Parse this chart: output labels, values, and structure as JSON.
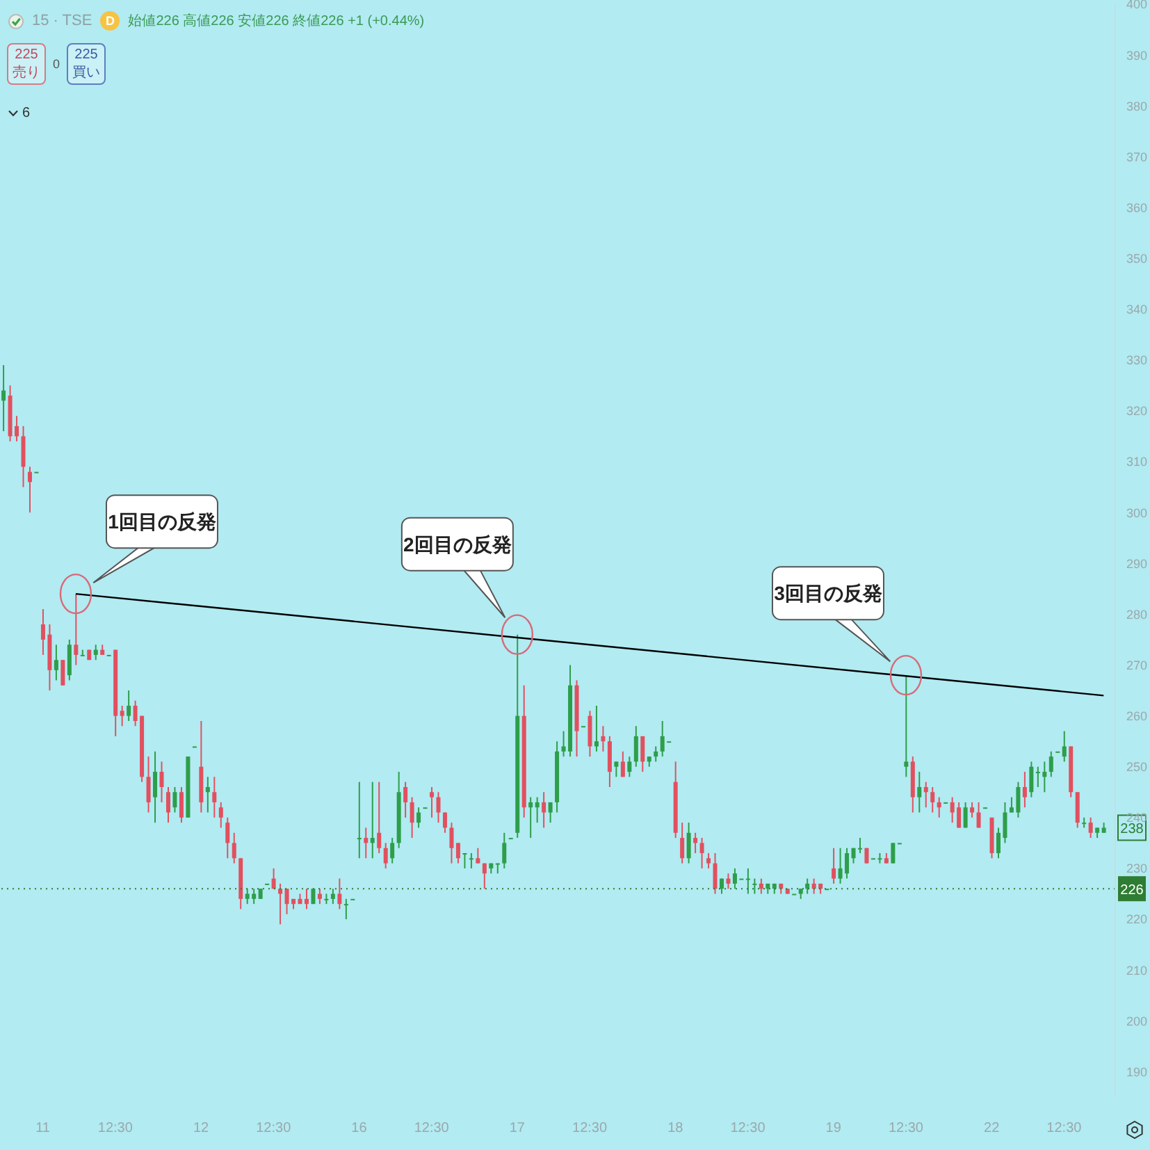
{
  "chart_data": {
    "type": "candlestick",
    "title": "15 · TSE",
    "subtitle": "始値226 高値226 安値226 終値226 +1 (+0.44%)",
    "categories": [
      null,
      null,
      null,
      null,
      null,
      null,
      "11",
      null,
      null,
      null,
      null,
      null,
      null,
      null,
      null,
      null,
      null,
      "12:30",
      null,
      null,
      null,
      null,
      null,
      null,
      null,
      null,
      null,
      null,
      null,
      null,
      "12",
      null,
      null,
      null,
      null,
      null,
      null,
      null,
      null,
      null,
      null,
      "12:30",
      null,
      null,
      null,
      null,
      null,
      null,
      null,
      null,
      null,
      null,
      null,
      null,
      "16",
      null,
      null,
      null,
      null,
      null,
      null,
      null,
      null,
      null,
      null,
      "12:30",
      null,
      null,
      null,
      null,
      null,
      null,
      null,
      null,
      null,
      null,
      null,
      null,
      "17",
      null,
      null,
      null,
      null,
      null,
      null,
      null,
      null,
      null,
      null,
      "12:30",
      null,
      null,
      null,
      null,
      null,
      null,
      null,
      null,
      null,
      null,
      null,
      null,
      "18",
      null,
      null,
      null,
      null,
      null,
      null,
      null,
      null,
      null,
      null,
      "12:30",
      null,
      null,
      null,
      null,
      null,
      null,
      null,
      null,
      null,
      null,
      null,
      null,
      "19",
      null,
      null,
      null,
      null,
      null,
      null,
      null,
      null,
      null,
      null,
      "12:30",
      null,
      null,
      null,
      null,
      null,
      null,
      null,
      null,
      null,
      null,
      null,
      null,
      "22",
      null,
      null,
      null,
      null,
      null,
      null,
      null,
      null,
      null,
      null,
      "12:30",
      null,
      null,
      null,
      null,
      null,
      null
    ],
    "ohlc": [
      [
        322,
        329,
        316,
        324
      ],
      [
        323,
        325,
        314,
        315
      ],
      [
        317,
        319,
        314,
        315
      ],
      [
        315,
        317,
        305,
        309
      ],
      [
        308,
        309,
        300,
        306
      ],
      [
        308,
        308,
        308,
        308
      ],
      [
        278,
        281,
        272,
        275
      ],
      [
        276,
        278,
        265,
        269
      ],
      [
        269,
        274,
        267,
        271
      ],
      [
        271,
        271,
        266,
        266
      ],
      [
        268,
        275,
        267,
        274
      ],
      [
        274,
        284,
        270,
        272
      ],
      [
        272,
        273,
        272,
        272
      ],
      [
        273,
        273,
        271,
        271
      ],
      [
        272,
        274,
        271,
        273
      ],
      [
        273,
        274,
        272,
        272
      ],
      [
        272,
        272,
        272,
        272
      ],
      [
        273,
        273,
        256,
        260
      ],
      [
        261,
        262,
        258,
        260
      ],
      [
        260,
        265,
        259,
        262
      ],
      [
        262,
        263,
        258,
        259
      ],
      [
        260,
        260,
        247,
        248
      ],
      [
        248,
        252,
        241,
        243
      ],
      [
        244,
        253,
        239,
        249
      ],
      [
        249,
        251,
        243,
        246
      ],
      [
        245,
        246,
        239,
        241
      ],
      [
        242,
        246,
        241,
        245
      ],
      [
        245,
        246,
        239,
        240
      ],
      [
        240,
        252,
        240,
        252
      ],
      [
        254,
        254,
        254,
        254
      ],
      [
        250,
        259,
        241,
        243
      ],
      [
        245,
        248,
        241,
        246
      ],
      [
        245,
        248,
        240,
        243
      ],
      [
        242,
        243,
        238,
        240
      ],
      [
        239,
        240,
        232,
        235
      ],
      [
        235,
        237,
        231,
        232
      ],
      [
        232,
        232,
        222,
        224
      ],
      [
        224,
        226,
        223,
        225
      ],
      [
        224,
        226,
        223,
        225
      ],
      [
        224,
        226,
        224,
        226
      ],
      [
        227,
        227,
        227,
        227
      ],
      [
        228,
        230,
        226,
        226
      ],
      [
        226,
        227,
        219,
        225
      ],
      [
        226,
        226,
        221,
        223
      ],
      [
        224,
        224,
        222,
        223
      ],
      [
        224,
        225,
        223,
        223
      ],
      [
        224,
        226,
        222,
        223
      ],
      [
        223,
        226,
        223,
        226
      ],
      [
        225,
        226,
        223,
        224
      ],
      [
        224,
        225,
        223,
        224
      ],
      [
        224,
        226,
        223,
        225
      ],
      [
        225,
        228,
        222,
        223
      ],
      [
        223,
        224,
        220,
        223
      ],
      [
        224,
        224,
        224,
        224
      ],
      [
        236,
        247,
        232,
        236
      ],
      [
        236,
        238,
        232,
        235
      ],
      [
        235,
        247,
        232,
        236
      ],
      [
        237,
        247,
        233,
        234
      ],
      [
        234,
        235,
        230,
        231
      ],
      [
        232,
        236,
        231,
        235
      ],
      [
        235,
        249,
        234,
        245
      ],
      [
        246,
        247,
        240,
        243
      ],
      [
        243,
        244,
        236,
        239
      ],
      [
        239,
        242,
        238,
        241
      ],
      [
        242,
        242,
        242,
        242
      ],
      [
        245,
        246,
        240,
        244
      ],
      [
        244,
        245,
        239,
        241
      ],
      [
        241,
        241,
        237,
        238
      ],
      [
        238,
        239,
        231,
        234
      ],
      [
        235,
        235,
        231,
        232
      ],
      [
        233,
        233,
        230,
        233
      ],
      [
        232,
        233,
        230,
        232
      ],
      [
        232,
        234,
        231,
        231
      ],
      [
        231,
        231,
        226,
        229
      ],
      [
        230,
        231,
        229,
        231
      ],
      [
        231,
        231,
        229,
        231
      ],
      [
        231,
        237,
        230,
        235
      ],
      [
        236,
        236,
        236,
        236
      ],
      [
        237,
        276,
        236,
        260
      ],
      [
        260,
        266,
        240,
        242
      ],
      [
        242,
        244,
        236,
        243
      ],
      [
        242,
        244,
        239,
        243
      ],
      [
        243,
        245,
        238,
        241
      ],
      [
        241,
        243,
        239,
        243
      ],
      [
        243,
        255,
        241,
        253
      ],
      [
        253,
        257,
        252,
        254
      ],
      [
        253,
        270,
        252,
        266
      ],
      [
        266,
        267,
        252,
        257
      ],
      [
        258,
        258,
        258,
        258
      ],
      [
        260,
        261,
        252,
        254
      ],
      [
        254,
        262,
        253,
        255
      ],
      [
        256,
        258,
        253,
        255
      ],
      [
        255,
        256,
        246,
        249
      ],
      [
        250,
        251,
        248,
        251
      ],
      [
        251,
        253,
        248,
        248
      ],
      [
        249,
        252,
        248,
        251
      ],
      [
        251,
        258,
        250,
        256
      ],
      [
        256,
        256,
        249,
        251
      ],
      [
        251,
        252,
        250,
        252
      ],
      [
        252,
        254,
        251,
        253
      ],
      [
        253,
        259,
        252,
        256
      ],
      [
        255,
        255,
        255,
        255
      ],
      [
        247,
        251,
        236,
        237
      ],
      [
        236,
        239,
        231,
        232
      ],
      [
        232,
        239,
        231,
        237
      ],
      [
        236,
        237,
        233,
        235
      ],
      [
        235,
        236,
        230,
        233
      ],
      [
        232,
        233,
        230,
        231
      ],
      [
        231,
        233,
        225,
        226
      ],
      [
        226,
        228,
        225,
        228
      ],
      [
        228,
        229,
        226,
        227
      ],
      [
        227,
        230,
        226,
        229
      ],
      [
        228,
        228,
        228,
        228
      ],
      [
        228,
        230,
        225,
        228
      ],
      [
        227,
        228,
        225,
        227
      ],
      [
        227,
        228,
        225,
        226
      ],
      [
        226,
        227,
        225,
        227
      ],
      [
        226,
        227,
        225,
        227
      ],
      [
        227,
        227,
        225,
        226
      ],
      [
        226,
        226,
        225,
        225
      ],
      [
        225,
        225,
        225,
        225
      ],
      [
        225,
        226,
        224,
        226
      ],
      [
        226,
        228,
        225,
        227
      ],
      [
        227,
        228,
        225,
        226
      ],
      [
        227,
        227,
        225,
        226
      ],
      [
        226,
        226,
        226,
        226
      ],
      [
        230,
        234,
        227,
        228
      ],
      [
        228,
        234,
        227,
        230
      ],
      [
        229,
        234,
        228,
        233
      ],
      [
        232,
        234,
        231,
        234
      ],
      [
        234,
        236,
        233,
        234
      ],
      [
        234,
        234,
        231,
        231
      ],
      [
        232,
        232,
        232,
        232
      ],
      [
        232,
        233,
        231,
        232
      ],
      [
        232,
        233,
        231,
        231
      ],
      [
        231,
        235,
        231,
        235
      ],
      [
        235,
        235,
        235,
        235
      ],
      [
        250,
        268,
        248,
        251
      ],
      [
        251,
        252,
        241,
        244
      ],
      [
        244,
        249,
        241,
        246
      ],
      [
        246,
        247,
        242,
        245
      ],
      [
        245,
        246,
        241,
        243
      ],
      [
        243,
        244,
        240,
        242
      ],
      [
        243,
        243,
        243,
        243
      ],
      [
        243,
        244,
        239,
        241
      ],
      [
        242,
        243,
        238,
        238
      ],
      [
        238,
        243,
        238,
        242
      ],
      [
        242,
        243,
        240,
        241
      ],
      [
        241,
        243,
        238,
        238
      ],
      [
        242,
        242,
        242,
        242
      ],
      [
        240,
        240,
        232,
        233
      ],
      [
        233,
        238,
        232,
        237
      ],
      [
        236,
        243,
        235,
        241
      ],
      [
        241,
        244,
        241,
        242
      ],
      [
        241,
        247,
        240,
        246
      ],
      [
        246,
        249,
        242,
        244
      ],
      [
        245,
        251,
        244,
        250
      ],
      [
        249,
        250,
        246,
        249
      ],
      [
        248,
        251,
        245,
        249
      ],
      [
        249,
        253,
        248,
        252
      ],
      [
        253,
        253,
        253,
        253
      ],
      [
        252,
        257,
        251,
        254
      ],
      [
        254,
        254,
        244,
        245
      ],
      [
        245,
        245,
        238,
        239
      ],
      [
        239,
        240,
        238,
        239
      ],
      [
        239,
        240,
        236,
        237
      ],
      [
        237,
        238,
        236,
        238
      ],
      [
        237,
        239,
        237,
        238
      ]
    ],
    "colors": [
      "#2e9e4a",
      "#e2505f",
      "#e2505f",
      "#e2505f",
      "#e2505f",
      "#2e9e4a",
      "#e2505f",
      "#e2505f",
      "#2e9e4a",
      "#e2505f",
      "#2e9e4a",
      "#e2505f",
      "#2e9e4a",
      "#e2505f",
      "#2e9e4a",
      "#e2505f",
      "#2e9e4a",
      "#e2505f",
      "#e2505f",
      "#2e9e4a",
      "#e2505f",
      "#e2505f",
      "#e2505f",
      "#2e9e4a",
      "#e2505f",
      "#e2505f",
      "#2e9e4a",
      "#e2505f",
      "#2e9e4a",
      "#2e9e4a",
      "#e2505f",
      "#2e9e4a",
      "#e2505f",
      "#e2505f",
      "#e2505f",
      "#e2505f",
      "#e2505f",
      "#2e9e4a",
      "#2e9e4a",
      "#2e9e4a",
      "#2e9e4a",
      "#e2505f",
      "#e2505f",
      "#e2505f",
      "#e2505f",
      "#e2505f",
      "#e2505f",
      "#2e9e4a",
      "#e2505f",
      "#2e9e4a",
      "#2e9e4a",
      "#e2505f",
      "#2e9e4a",
      "#2e9e4a",
      "#2e9e4a",
      "#e2505f",
      "#2e9e4a",
      "#e2505f",
      "#e2505f",
      "#2e9e4a",
      "#2e9e4a",
      "#e2505f",
      "#e2505f",
      "#2e9e4a",
      "#2e9e4a",
      "#e2505f",
      "#e2505f",
      "#e2505f",
      "#e2505f",
      "#e2505f",
      "#2e9e4a",
      "#2e9e4a",
      "#e2505f",
      "#e2505f",
      "#2e9e4a",
      "#2e9e4a",
      "#2e9e4a",
      "#2e9e4a",
      "#2e9e4a",
      "#e2505f",
      "#2e9e4a",
      "#2e9e4a",
      "#e2505f",
      "#2e9e4a",
      "#2e9e4a",
      "#2e9e4a",
      "#2e9e4a",
      "#e2505f",
      "#2e9e4a",
      "#e2505f",
      "#2e9e4a",
      "#e2505f",
      "#e2505f",
      "#2e9e4a",
      "#e2505f",
      "#2e9e4a",
      "#2e9e4a",
      "#e2505f",
      "#2e9e4a",
      "#2e9e4a",
      "#2e9e4a",
      "#2e9e4a",
      "#e2505f",
      "#e2505f",
      "#2e9e4a",
      "#e2505f",
      "#e2505f",
      "#e2505f",
      "#e2505f",
      "#2e9e4a",
      "#e2505f",
      "#2e9e4a",
      "#2e9e4a",
      "#2e9e4a",
      "#2e9e4a",
      "#e2505f",
      "#2e9e4a",
      "#2e9e4a",
      "#e2505f",
      "#e2505f",
      "#2e9e4a",
      "#2e9e4a",
      "#2e9e4a",
      "#e2505f",
      "#e2505f",
      "#2e9e4a",
      "#e2505f",
      "#2e9e4a",
      "#2e9e4a",
      "#2e9e4a",
      "#2e9e4a",
      "#e2505f",
      "#2e9e4a",
      "#2e9e4a",
      "#e2505f",
      "#2e9e4a",
      "#2e9e4a",
      "#2e9e4a",
      "#e2505f",
      "#2e9e4a",
      "#e2505f",
      "#e2505f",
      "#e2505f",
      "#2e9e4a",
      "#e2505f",
      "#e2505f",
      "#2e9e4a",
      "#e2505f",
      "#e2505f",
      "#2e9e4a",
      "#e2505f",
      "#2e9e4a",
      "#2e9e4a",
      "#2e9e4a",
      "#2e9e4a",
      "#e2505f",
      "#2e9e4a",
      "#2e9e4a",
      "#2e9e4a",
      "#2e9e4a",
      "#2e9e4a",
      "#2e9e4a",
      "#e2505f",
      "#e2505f",
      "#2e9e4a",
      "#e2505f",
      "#2e9e4a",
      "#2e9e4a"
    ],
    "series": [
      {
        "type": "line",
        "color": "#000000",
        "values": [
          null,
          null,
          null,
          null,
          null,
          null,
          null,
          null,
          null,
          null,
          null,
          284,
          null,
          null,
          null,
          null,
          null,
          null,
          null,
          null,
          null,
          null,
          null,
          null,
          null,
          null,
          null,
          null,
          null,
          null,
          null,
          null,
          null,
          null,
          null,
          null,
          null,
          null,
          null,
          null,
          null,
          null,
          null,
          null,
          null,
          null,
          null,
          null,
          null,
          null,
          null,
          null,
          null,
          null,
          null,
          null,
          null,
          null,
          null,
          null,
          null,
          null,
          null,
          null,
          null,
          null,
          null,
          null,
          null,
          null,
          null,
          null,
          null,
          null,
          null,
          null,
          null,
          null,
          null,
          null,
          null,
          null,
          null,
          null,
          null,
          null,
          null,
          null,
          null,
          null,
          null,
          null,
          null,
          null,
          null,
          null,
          null,
          null,
          null,
          null,
          null,
          null,
          null,
          null,
          null,
          null,
          null,
          null,
          null,
          null,
          null,
          null,
          null,
          null,
          null,
          null,
          null,
          null,
          null,
          null,
          null,
          null,
          null,
          null,
          null,
          null,
          null,
          null,
          null,
          null,
          null,
          null,
          null,
          null,
          null,
          null,
          null,
          null,
          null,
          null,
          null,
          null,
          null,
          null,
          null,
          null,
          null,
          null,
          null,
          null,
          null,
          null,
          null,
          null,
          null,
          null,
          null,
          null,
          null,
          null,
          null,
          null,
          null,
          null,
          null,
          null,
          null,
          264
        ]
      }
    ],
    "ylim": [
      185,
      400
    ],
    "yticks": [
      190,
      200,
      210,
      220,
      230,
      240,
      250,
      260,
      270,
      280,
      290,
      300,
      310,
      320,
      330,
      340,
      350,
      360,
      370,
      380,
      390,
      400
    ],
    "ref_lines": [
      {
        "axis": "y",
        "value": 226,
        "label": "226",
        "color": "#2e7d32",
        "line_style": "dotted"
      }
    ],
    "annotations": [
      "1回目の反発",
      "2回目の反発",
      "3回目の反発",
      "238",
      "D",
      "225",
      "売り",
      "0",
      "225",
      "買い",
      "6"
    ]
  }
}
